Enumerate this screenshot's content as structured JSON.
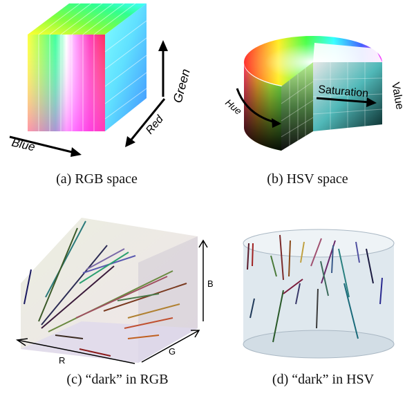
{
  "panels": {
    "a": {
      "caption": "(a) RGB space",
      "axes": {
        "blue": "Blue",
        "red": "Red",
        "green": "Green"
      }
    },
    "b": {
      "caption": "(b) HSV space",
      "axes": {
        "hue": "Hue",
        "saturation": "Saturation",
        "value": "Value"
      }
    },
    "c": {
      "caption": "(c) “dark” in RGB",
      "axes": {
        "r": "R",
        "g": "G",
        "b": "B"
      }
    },
    "d": {
      "caption": "(d) “dark” in HSV"
    }
  },
  "colors": {
    "cube_side_dark": "#c8c2cc",
    "cylinder_fill": "#dfe8ee",
    "cylinder_edge": "#aab8c4"
  }
}
